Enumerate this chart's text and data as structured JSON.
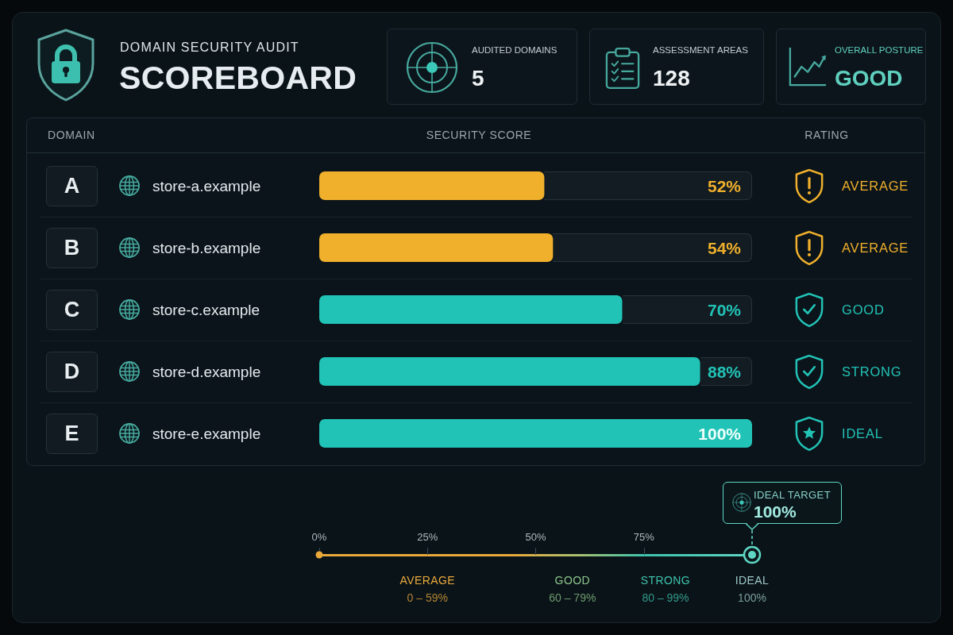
{
  "chart_data": {
    "type": "bar",
    "orientation": "horizontal",
    "title": "SCOREBOARD",
    "subtitle": "DOMAIN SECURITY AUDIT",
    "categories": [
      "store-a.example",
      "store-b.example",
      "store-c.example",
      "store-d.example",
      "store-e.example"
    ],
    "values": [
      52,
      54,
      70,
      88,
      100
    ],
    "colors": [
      "#f0b02c",
      "#f0b02c",
      "#22c3b7",
      "#22c3b7",
      "#22c3b7"
    ],
    "value_labels": [
      "52%",
      "54%",
      "70%",
      "88%",
      "100%"
    ],
    "xlim": [
      0,
      100
    ],
    "xticks": [
      {
        "value": 0,
        "label": "0%"
      },
      {
        "value": 25,
        "label": "25%"
      },
      {
        "value": 50,
        "label": "50%"
      },
      {
        "value": 75,
        "label": "75%"
      }
    ],
    "annotations": [
      "DOMAIN",
      "SECURITY SCORE",
      "RATING",
      "A",
      "B",
      "C",
      "D",
      "E",
      "AVERAGE",
      "AVERAGE",
      "GOOD",
      "STRONG",
      "IDEAL",
      "AUDITED DOMAINS",
      "5",
      "ASSESSMENT AREAS",
      "128",
      "OVERALL POSTURE",
      "GOOD",
      "IDEAL TARGET",
      "100%",
      "AVERAGE",
      "0 – 59%",
      "GOOD",
      "60 – 79%",
      "STRONG",
      "80 – 99%",
      "IDEAL",
      "100%"
    ]
  }
}
